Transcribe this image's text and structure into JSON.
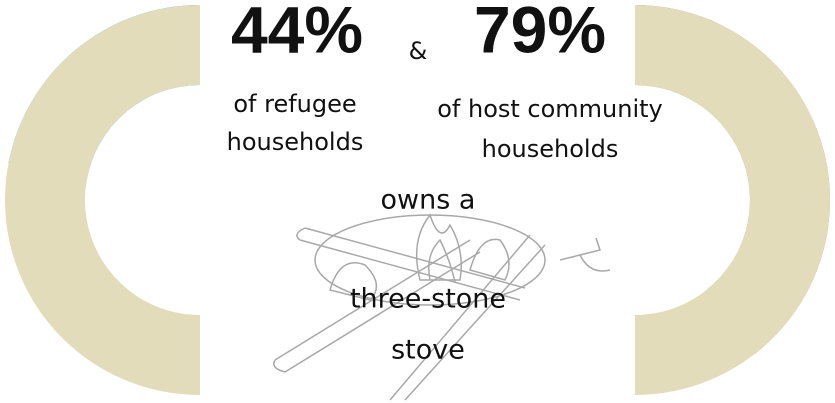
{
  "chart_data": [
    {
      "type": "half-donut",
      "values": [
        44
      ],
      "value_labels": [
        "44%"
      ],
      "label": [
        "of refugee",
        "households"
      ],
      "color": "#00a9e6",
      "rest_color": "#e3dcbb"
    },
    {
      "type": "half-donut",
      "values": [
        79
      ],
      "value_labels": [
        "79%"
      ],
      "label": [
        "of host community",
        "households"
      ],
      "color": "#a47e5a",
      "rest_color": "#e3dcbb"
    }
  ],
  "joiner": "&",
  "statement": [
    "owns a",
    "three-stone",
    "stove"
  ]
}
